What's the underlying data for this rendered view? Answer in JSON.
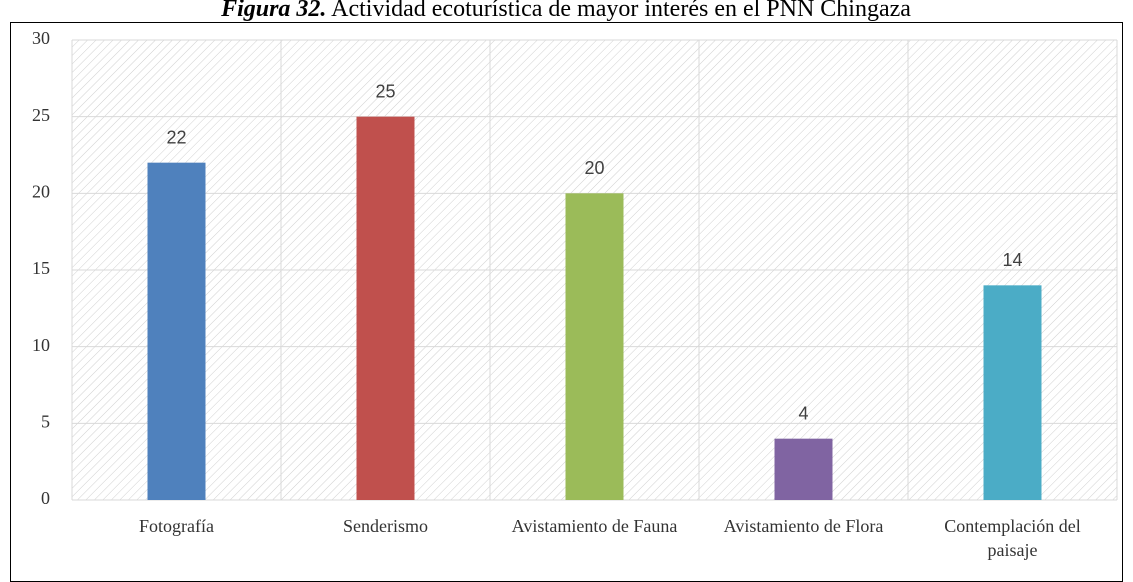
{
  "chart_data": {
    "type": "bar",
    "title_label": "Figura 32.",
    "title": "Actividad ecoturística de mayor interés en el PNN Chingaza",
    "categories": [
      "Fotografía",
      "Senderismo",
      "Avistamiento de Fauna",
      "Avistamiento de Flora",
      "Contemplación del paisaje"
    ],
    "values": [
      22,
      25,
      20,
      4,
      14
    ],
    "colors": [
      "#4f81bd",
      "#c0504d",
      "#9bbb59",
      "#8064a2",
      "#4bacc6"
    ],
    "ylim": [
      0,
      30
    ],
    "yticks": [
      0,
      5,
      10,
      15,
      20,
      25,
      30
    ],
    "grid": true
  }
}
